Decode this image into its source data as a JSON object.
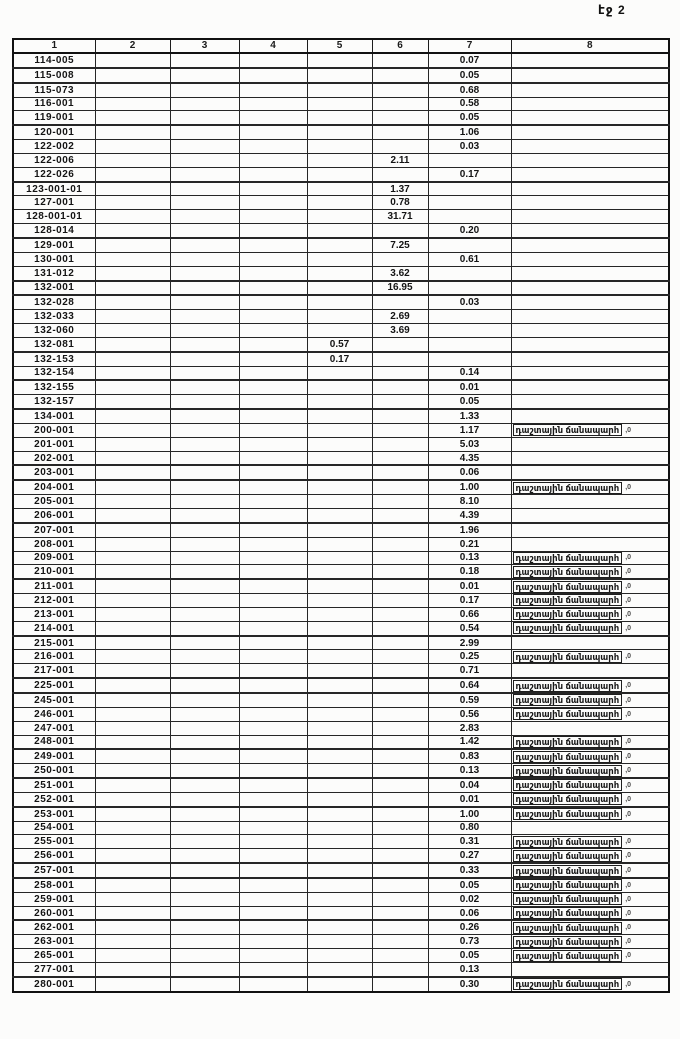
{
  "page": {
    "label": "էջ 2"
  },
  "colors": {
    "ink": "#161616",
    "paper": "#fcfcfb"
  },
  "table": {
    "headers": [
      "1",
      "2",
      "3",
      "4",
      "5",
      "6",
      "7",
      "8"
    ],
    "note_text": "դաշտային ճանապարհ",
    "note_mark": ",0",
    "rows": [
      {
        "code": "114-005",
        "c7": "0.07",
        "note": false
      },
      {
        "code": "115-008",
        "c7": "0.05",
        "note": false
      },
      {
        "code": "115-073",
        "c7": "0.68",
        "note": false
      },
      {
        "code": "116-001",
        "c7": "0.58",
        "note": false
      },
      {
        "code": "119-001",
        "c7": "0.05",
        "note": false
      },
      {
        "code": "120-001",
        "c7": "1.06",
        "note": false
      },
      {
        "code": "122-002",
        "c7": "0.03",
        "note": false
      },
      {
        "code": "122-006",
        "c6": "2.11",
        "note": false
      },
      {
        "code": "122-026",
        "c7": "0.17",
        "note": false
      },
      {
        "code": "123-001-01",
        "c6": "1.37",
        "note": false
      },
      {
        "code": "127-001",
        "c6": "0.78",
        "note": false
      },
      {
        "code": "128-001-01",
        "c6": "31.71",
        "note": false
      },
      {
        "code": "128-014",
        "c7": "0.20",
        "note": false
      },
      {
        "code": "129-001",
        "c6": "7.25",
        "note": false
      },
      {
        "code": "130-001",
        "c7": "0.61",
        "note": false
      },
      {
        "code": "131-012",
        "c6": "3.62",
        "note": false
      },
      {
        "code": "132-001",
        "c6": "16.95",
        "note": false
      },
      {
        "code": "132-028",
        "c7": "0.03",
        "note": false
      },
      {
        "code": "132-033",
        "c6": "2.69",
        "note": false
      },
      {
        "code": "132-060",
        "c6": "3.69",
        "note": false
      },
      {
        "code": "132-081",
        "c5": "0.57",
        "note": false
      },
      {
        "code": "132-153",
        "c5": "0.17",
        "note": false
      },
      {
        "code": "132-154",
        "c7": "0.14",
        "note": false
      },
      {
        "code": "132-155",
        "c7": "0.01",
        "note": false
      },
      {
        "code": "132-157",
        "c7": "0.05",
        "note": false
      },
      {
        "code": "134-001",
        "c7": "1.33",
        "note": false
      },
      {
        "code": "200-001",
        "c7": "1.17",
        "note": true
      },
      {
        "code": "201-001",
        "c7": "5.03",
        "note": false
      },
      {
        "code": "202-001",
        "c7": "4.35",
        "note": false
      },
      {
        "code": "203-001",
        "c7": "0.06",
        "note": false
      },
      {
        "code": "204-001",
        "c7": "1.00",
        "note": true
      },
      {
        "code": "205-001",
        "c7": "8.10",
        "note": false
      },
      {
        "code": "206-001",
        "c7": "4.39",
        "note": false
      },
      {
        "code": "207-001",
        "c7": "1.96",
        "note": false
      },
      {
        "code": "208-001",
        "c7": "0.21",
        "note": false
      },
      {
        "code": "209-001",
        "c7": "0.13",
        "note": true
      },
      {
        "code": "210-001",
        "c7": "0.18",
        "note": true
      },
      {
        "code": "211-001",
        "c7": "0.01",
        "note": true
      },
      {
        "code": "212-001",
        "c7": "0.17",
        "note": true
      },
      {
        "code": "213-001",
        "c7": "0.66",
        "note": true
      },
      {
        "code": "214-001",
        "c7": "0.54",
        "note": true
      },
      {
        "code": "215-001",
        "c7": "2.99",
        "note": false
      },
      {
        "code": "216-001",
        "c7": "0.25",
        "note": true
      },
      {
        "code": "217-001",
        "c7": "0.71",
        "note": false
      },
      {
        "code": "225-001",
        "c7": "0.64",
        "note": true
      },
      {
        "code": "245-001",
        "c7": "0.59",
        "note": true
      },
      {
        "code": "246-001",
        "c7": "0.56",
        "note": true
      },
      {
        "code": "247-001",
        "c7": "2.83",
        "note": false
      },
      {
        "code": "248-001",
        "c7": "1.42",
        "note": true
      },
      {
        "code": "249-001",
        "c7": "0.83",
        "note": true
      },
      {
        "code": "250-001",
        "c7": "0.13",
        "note": true
      },
      {
        "code": "251-001",
        "c7": "0.04",
        "note": true
      },
      {
        "code": "252-001",
        "c7": "0.01",
        "note": true
      },
      {
        "code": "253-001",
        "c7": "1.00",
        "note": true
      },
      {
        "code": "254-001",
        "c7": "0.80",
        "note": false
      },
      {
        "code": "255-001",
        "c7": "0.31",
        "note": true
      },
      {
        "code": "256-001",
        "c7": "0.27",
        "note": true
      },
      {
        "code": "257-001",
        "c7": "0.33",
        "note": true
      },
      {
        "code": "258-001",
        "c7": "0.05",
        "note": true
      },
      {
        "code": "259-001",
        "c7": "0.02",
        "note": true
      },
      {
        "code": "260-001",
        "c7": "0.06",
        "note": true
      },
      {
        "code": "262-001",
        "c7": "0.26",
        "note": true
      },
      {
        "code": "263-001",
        "c7": "0.73",
        "note": true
      },
      {
        "code": "265-001",
        "c7": "0.05",
        "note": true
      },
      {
        "code": "277-001",
        "c7": "0.13",
        "note": false
      },
      {
        "code": "280-001",
        "c7": "0.30",
        "note": true
      }
    ]
  }
}
